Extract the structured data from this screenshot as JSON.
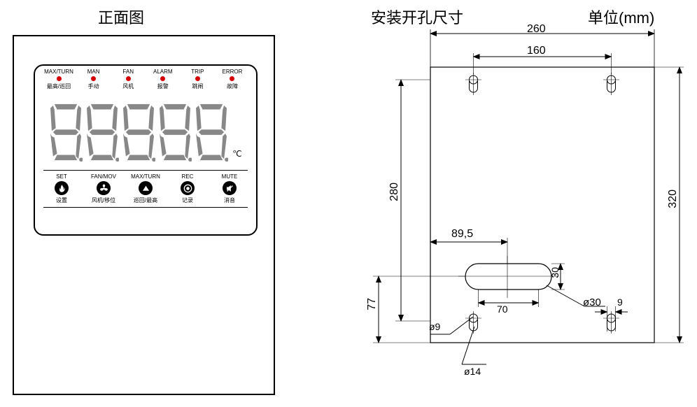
{
  "titles": {
    "front": "正面图",
    "mount": "安装开孔尺寸",
    "unit": "单位(mm)"
  },
  "leds": [
    {
      "en": "MAX/TURN",
      "cn": "最高/巡回"
    },
    {
      "en": "MAN",
      "cn": "手动"
    },
    {
      "en": "FAN",
      "cn": "风机"
    },
    {
      "en": "ALARM",
      "cn": "报警"
    },
    {
      "en": "TRIP",
      "cn": "跳闸"
    },
    {
      "en": "ERROR",
      "cn": "故障"
    }
  ],
  "digit_count": 5,
  "degC": "℃",
  "buttons": [
    {
      "en": "SET",
      "cn": "设置",
      "icon": "flame"
    },
    {
      "en": "FAN/MOV",
      "cn": "风机/移位",
      "icon": "fan"
    },
    {
      "en": "MAX/TURN",
      "cn": "巡回/最高",
      "icon": "up"
    },
    {
      "en": "REC",
      "cn": "记录",
      "icon": "record"
    },
    {
      "en": "MUTE",
      "cn": "消音",
      "icon": "mute"
    }
  ],
  "dims": {
    "w_total": "260",
    "w_hole_pitch": "160",
    "h_keyhole_pitch": "280",
    "h_total": "320",
    "slot_center_x": "89,5",
    "slot_width_int": "70",
    "slot_height": "30",
    "slot_dia": "ø30",
    "lower_keyhole_cy": "77",
    "small_hole": "ø9",
    "keyhole_big": "ø14",
    "right_small": "9"
  },
  "colors": {
    "led": "#d40000",
    "segment": "#888888",
    "line": "#000000"
  }
}
